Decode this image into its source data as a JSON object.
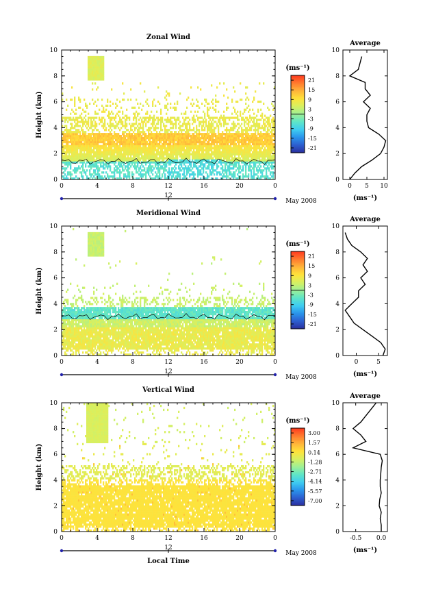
{
  "chart_data": [
    {
      "type": "heatmap",
      "title": "Zonal Wind",
      "ylabel": "Height (km)",
      "unit_label": "(ms⁻¹)",
      "x_ticks": [
        "0",
        "4",
        "8",
        "12",
        "16",
        "20",
        "0"
      ],
      "y_ticks": [
        "0",
        "2",
        "4",
        "6",
        "8",
        "10"
      ],
      "xlim": [
        0,
        24
      ],
      "ylim": [
        0,
        10
      ],
      "date_marker": "12",
      "date_label": "May 2008",
      "colorbar_ticks": [
        "21",
        "15",
        "9",
        "3",
        "-3",
        "-9",
        "-15",
        "-21"
      ],
      "colorbar_range": [
        -24,
        24
      ],
      "profile": {
        "title": "Average",
        "x_ticks": [
          "0",
          "5",
          "10"
        ],
        "xlim": [
          -2,
          11
        ],
        "xlabel": "(ms⁻¹)",
        "heights": [
          0,
          0.5,
          1,
          1.5,
          2,
          2.5,
          3,
          3.5,
          4,
          4.5,
          5,
          5.5,
          6,
          6.5,
          7,
          7.5,
          8,
          8.5,
          9,
          9.5
        ],
        "values": [
          0,
          1.5,
          3.5,
          6.5,
          9,
          10,
          10.5,
          8.5,
          5.5,
          5,
          5,
          6,
          4,
          6,
          4.5,
          4.5,
          0,
          2.5,
          3,
          3.5
        ]
      }
    },
    {
      "type": "heatmap",
      "title": "Meridional Wind",
      "ylabel": "Height (km)",
      "unit_label": "(ms⁻¹)",
      "x_ticks": [
        "0",
        "4",
        "8",
        "12",
        "16",
        "20",
        "0"
      ],
      "y_ticks": [
        "0",
        "2",
        "4",
        "6",
        "8",
        "10"
      ],
      "xlim": [
        0,
        24
      ],
      "ylim": [
        0,
        10
      ],
      "date_marker": "12",
      "date_label": "May 2008",
      "colorbar_ticks": [
        "21",
        "15",
        "9",
        "3",
        "-3",
        "-9",
        "-15",
        "-21"
      ],
      "colorbar_range": [
        -24,
        24
      ],
      "profile": {
        "title": "Average",
        "x_ticks": [
          "0",
          "5"
        ],
        "xlim": [
          -3,
          7
        ],
        "xlabel": "(ms⁻¹)",
        "heights": [
          0,
          0.5,
          1,
          1.5,
          2,
          2.5,
          3,
          3.5,
          4,
          4.5,
          5,
          5.5,
          6,
          6.5,
          7,
          7.5,
          8,
          8.5,
          9,
          9.5
        ],
        "values": [
          6,
          6.5,
          5.5,
          3.5,
          1.5,
          -0.5,
          -1.5,
          -2.5,
          -1,
          0.5,
          0.5,
          2,
          1,
          2.5,
          1.5,
          2.5,
          1,
          -1,
          -2,
          -2.5
        ]
      }
    },
    {
      "type": "heatmap",
      "title": "Vertical Wind",
      "ylabel": "Height (km)",
      "xlabel": "Local Time",
      "unit_label": "(ms⁻¹)",
      "x_ticks": [
        "0",
        "4",
        "8",
        "12",
        "16",
        "20",
        "0"
      ],
      "y_ticks": [
        "0",
        "2",
        "4",
        "6",
        "8",
        "10"
      ],
      "xlim": [
        0,
        24
      ],
      "ylim": [
        0,
        10
      ],
      "date_marker": "12",
      "date_label": "May 2008",
      "colorbar_ticks": [
        "3.00",
        "1.57",
        "0.14",
        "-1.28",
        "-2.71",
        "-4.14",
        "-5.57",
        "-7.00"
      ],
      "colorbar_range": [
        -7.7,
        3.7
      ],
      "profile": {
        "title": "Average",
        "x_ticks": [
          "-0.5",
          "0.0"
        ],
        "xlim": [
          -0.75,
          0.12
        ],
        "xlabel": "(ms⁻¹)",
        "heights": [
          0,
          0.5,
          1,
          1.5,
          2,
          2.5,
          3,
          3.5,
          4,
          4.5,
          5,
          5.5,
          6,
          6.5,
          7,
          7.5,
          8,
          8.5,
          9,
          9.5,
          10
        ],
        "values": [
          0.0,
          0.0,
          -0.02,
          0.0,
          -0.04,
          -0.03,
          0.0,
          -0.02,
          -0.02,
          -0.01,
          0.0,
          0.02,
          -0.02,
          -0.55,
          -0.3,
          -0.4,
          -0.55,
          -0.4,
          -0.3,
          -0.2,
          -0.1
        ]
      }
    }
  ]
}
